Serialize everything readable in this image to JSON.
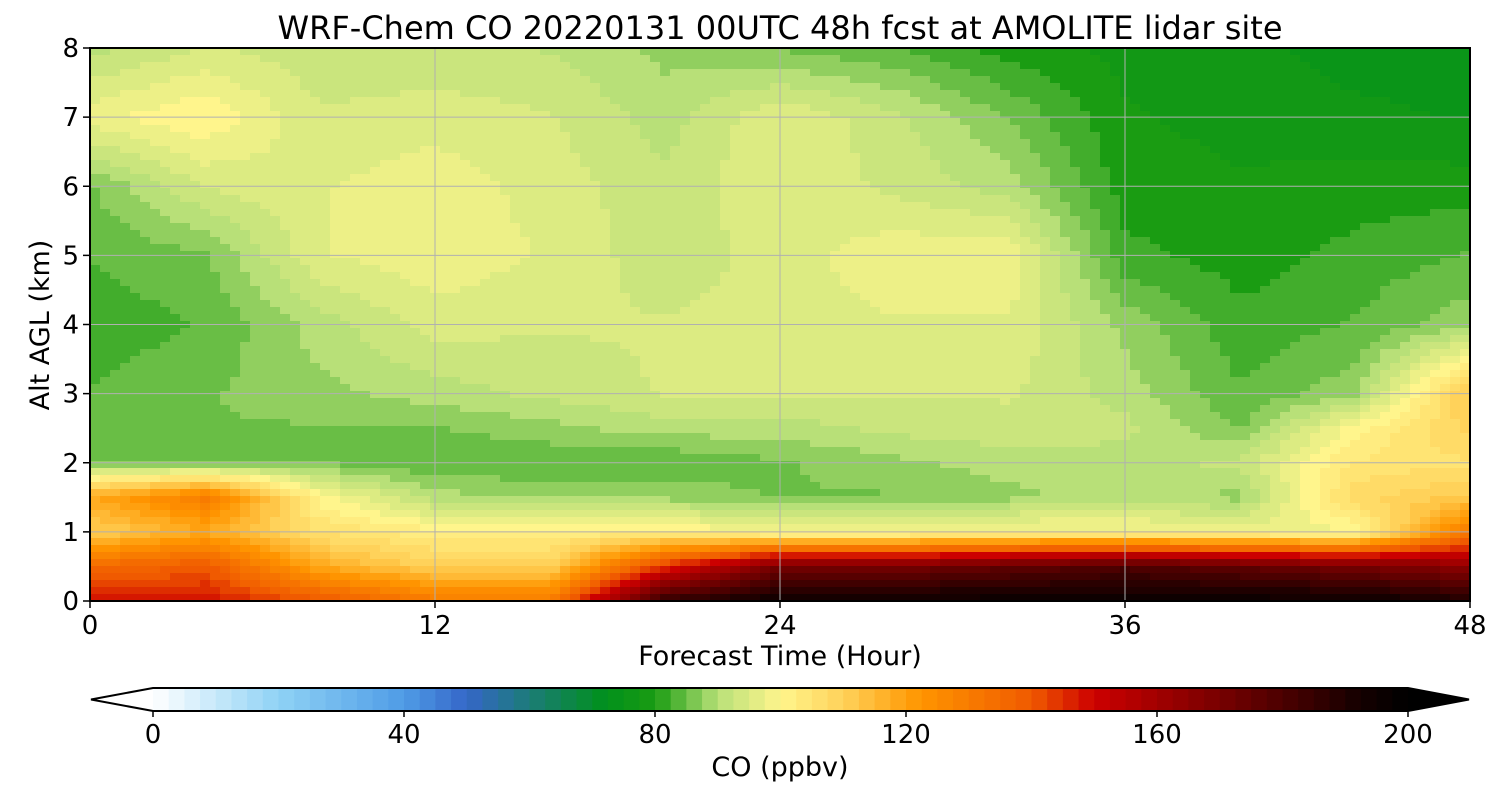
{
  "chart_data": {
    "type": "heatmap",
    "title": "WRF-Chem CO  20220131 00UTC 48h fcst at AMOLITE lidar site",
    "xlabel": "Forecast Time (Hour)",
    "ylabel": "Alt AGL (km)",
    "xlim": [
      0,
      48
    ],
    "ylim": [
      0,
      8
    ],
    "x_ticks": [
      0,
      12,
      24,
      36,
      48
    ],
    "y_ticks": [
      0,
      1,
      2,
      3,
      4,
      5,
      6,
      7,
      8
    ],
    "grid": true,
    "x": [
      0,
      4,
      8,
      12,
      16,
      20,
      24,
      28,
      32,
      36,
      40,
      44,
      48
    ],
    "y": [
      0,
      0.5,
      1,
      1.5,
      2,
      2.5,
      3,
      4,
      5,
      6,
      7,
      8
    ],
    "z": [
      [
        148,
        148,
        140,
        130,
        130,
        186,
        196,
        196,
        196,
        196,
        196,
        196,
        190
      ],
      [
        135,
        140,
        118,
        110,
        110,
        145,
        170,
        170,
        175,
        180,
        175,
        170,
        165
      ],
      [
        110,
        118,
        106,
        102,
        102,
        102,
        98,
        98,
        100,
        100,
        98,
        98,
        130
      ],
      [
        118,
        130,
        100,
        90,
        88,
        88,
        86,
        86,
        88,
        90,
        88,
        108,
        112
      ],
      [
        86,
        86,
        86,
        84,
        84,
        84,
        86,
        88,
        90,
        90,
        92,
        104,
        106
      ],
      [
        84,
        86,
        86,
        86,
        88,
        90,
        90,
        92,
        93,
        92,
        86,
        100,
        110
      ],
      [
        84,
        86,
        88,
        90,
        92,
        94,
        94,
        94,
        94,
        90,
        84,
        88,
        112
      ],
      [
        82,
        84,
        90,
        95,
        94,
        94,
        95,
        96,
        96,
        88,
        82,
        84,
        88
      ],
      [
        84,
        86,
        96,
        98,
        96,
        92,
        95,
        98,
        98,
        82,
        80,
        82,
        84
      ],
      [
        86,
        94,
        96,
        98,
        95,
        92,
        96,
        93,
        90,
        80,
        79,
        80,
        80
      ],
      [
        98,
        101,
        94,
        95,
        94,
        90,
        96,
        92,
        86,
        79,
        78,
        77,
        76
      ],
      [
        90,
        94,
        92,
        92,
        91,
        88,
        86,
        84,
        80,
        78,
        77,
        75,
        74
      ]
    ],
    "colorbar": {
      "label": "CO  (ppbv)",
      "min": 0,
      "max": 200,
      "ticks": [
        0,
        40,
        80,
        120,
        160,
        200
      ],
      "extend": "both",
      "stops": [
        {
          "v": 0,
          "c": "#ffffff"
        },
        {
          "v": 20,
          "c": "#8fd2f5"
        },
        {
          "v": 40,
          "c": "#4f9ce6"
        },
        {
          "v": 50,
          "c": "#3566c8"
        },
        {
          "v": 60,
          "c": "#1c7c78"
        },
        {
          "v": 72,
          "c": "#00901c"
        },
        {
          "v": 80,
          "c": "#1a9c12"
        },
        {
          "v": 90,
          "c": "#b8e078"
        },
        {
          "v": 100,
          "c": "#fff58c"
        },
        {
          "v": 110,
          "c": "#ffd25a"
        },
        {
          "v": 122,
          "c": "#ff9600"
        },
        {
          "v": 140,
          "c": "#f05a00"
        },
        {
          "v": 150,
          "c": "#cc0000"
        },
        {
          "v": 175,
          "c": "#620000"
        },
        {
          "v": 192,
          "c": "#160000"
        },
        {
          "v": 200,
          "c": "#000000"
        }
      ]
    }
  }
}
